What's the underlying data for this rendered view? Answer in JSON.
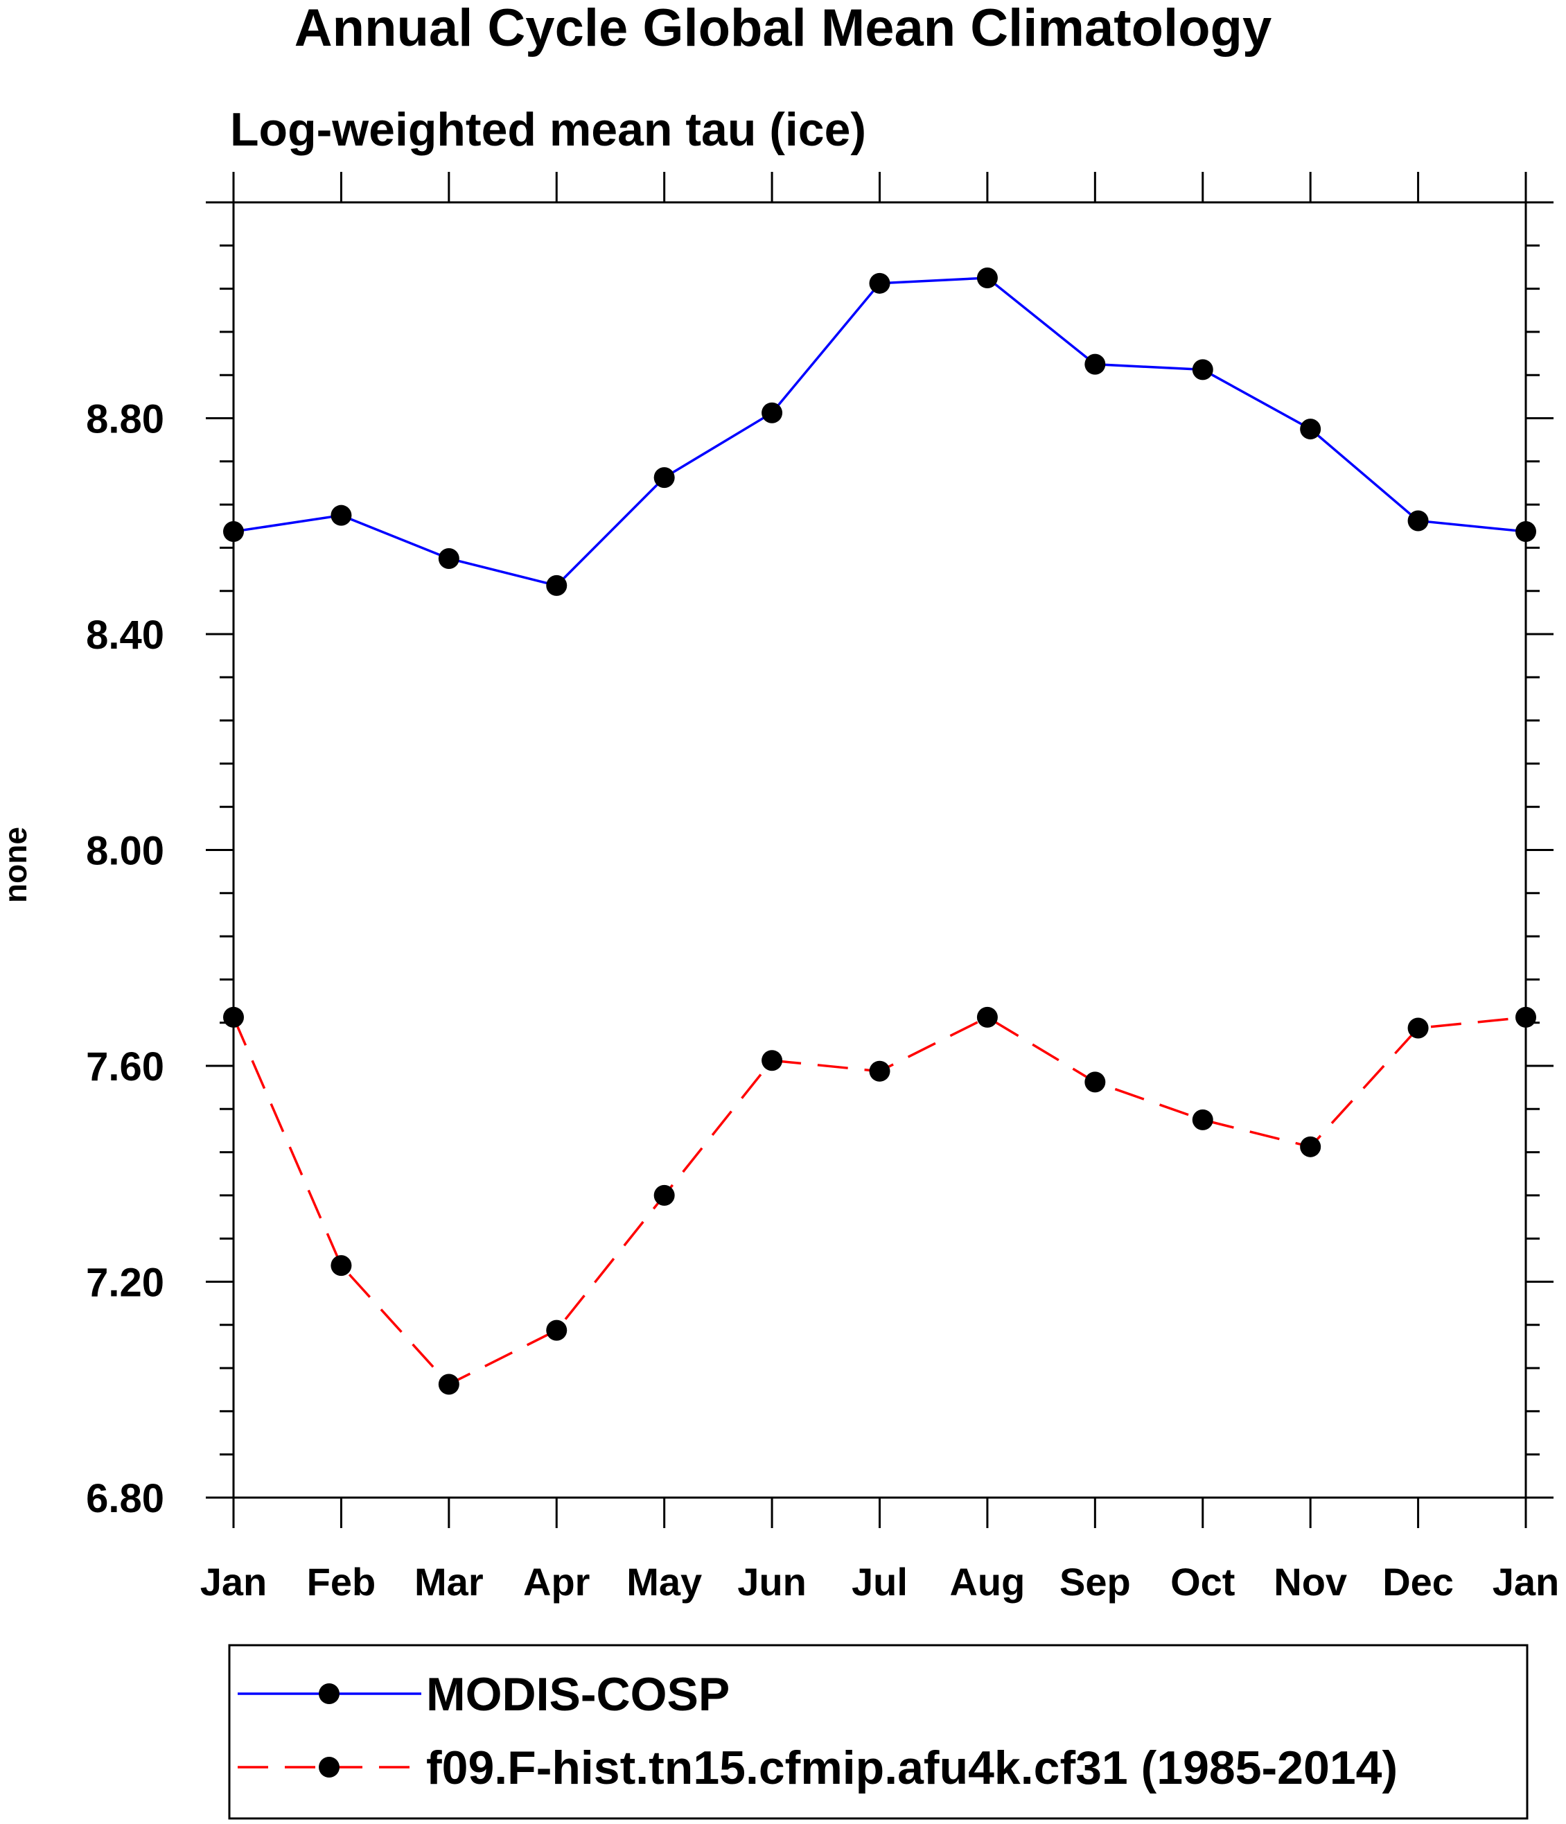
{
  "chart_data": {
    "type": "line",
    "title": "Annual Cycle Global Mean Climatology",
    "subtitle": "Log-weighted mean tau (ice)",
    "xlabel": "",
    "ylabel": "none",
    "categories": [
      "Jan",
      "Feb",
      "Mar",
      "Apr",
      "May",
      "Jun",
      "Jul",
      "Aug",
      "Sep",
      "Oct",
      "Nov",
      "Dec",
      "Jan"
    ],
    "ylim": [
      6.8,
      9.2
    ],
    "yticks": [
      "6.80",
      "7.20",
      "7.60",
      "8.00",
      "8.40",
      "8.80"
    ],
    "grid": false,
    "legend_position": "bottom",
    "series": [
      {
        "name": "MODIS-COSP",
        "color": "#0000ff",
        "line_style": "solid",
        "marker": "filled-circle",
        "values": [
          8.59,
          8.62,
          8.54,
          8.49,
          8.69,
          8.81,
          9.05,
          9.06,
          8.9,
          8.89,
          8.78,
          8.61,
          8.59
        ]
      },
      {
        "name": "f09.F-hist.tn15.cfmip.afu4k.cf31 (1985-2014)",
        "color": "#ff0000",
        "line_style": "dashed",
        "marker": "filled-circle",
        "values": [
          7.69,
          7.23,
          7.01,
          7.11,
          7.36,
          7.61,
          7.59,
          7.69,
          7.57,
          7.5,
          7.45,
          7.67,
          7.69
        ]
      }
    ]
  }
}
